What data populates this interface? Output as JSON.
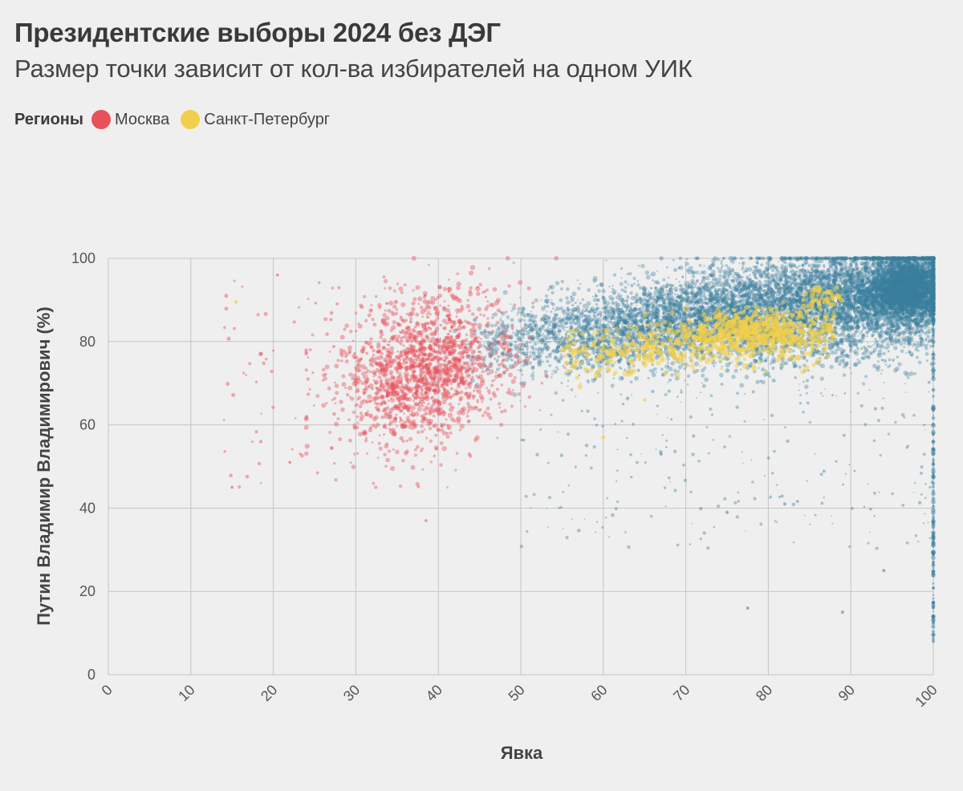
{
  "title": "Президентские выборы 2024 без ДЭГ",
  "subtitle": "Размер точки зависит от кол-ва избирателей на одном УИК",
  "legend": {
    "title": "Регионы",
    "items": [
      {
        "label": "Москва",
        "color": "#e8505b"
      },
      {
        "label": "Санкт-Петербург",
        "color": "#f2cf4a"
      }
    ]
  },
  "chart_data": {
    "type": "scatter",
    "xlabel": "Явка",
    "ylabel": "Путин Владимир Владимирович (%)",
    "xlim": [
      0,
      100
    ],
    "ylim": [
      0,
      100
    ],
    "xticks": [
      "0",
      "10",
      "20",
      "30",
      "40",
      "50",
      "60",
      "70",
      "80",
      "90",
      "100"
    ],
    "yticks": [
      "0",
      "20",
      "40",
      "60",
      "80",
      "100"
    ],
    "grid": true,
    "series": [
      {
        "name": "",
        "color": "#3a7f9e",
        "description_clusters": [
          {
            "x_center": 72,
            "y_center": 84,
            "x_spread": 15,
            "y_spread": 6
          },
          {
            "x_center": 95,
            "y_center": 92,
            "x_spread": 5,
            "y_spread": 5
          }
        ],
        "values": [
          {
            "x": 45,
            "y": 83
          },
          {
            "x": 50,
            "y": 80
          },
          {
            "x": 55,
            "y": 81
          },
          {
            "x": 60,
            "y": 82
          },
          {
            "x": 65,
            "y": 83
          },
          {
            "x": 70,
            "y": 85
          },
          {
            "x": 75,
            "y": 86
          },
          {
            "x": 80,
            "y": 87
          },
          {
            "x": 85,
            "y": 89
          },
          {
            "x": 90,
            "y": 91
          },
          {
            "x": 95,
            "y": 94
          },
          {
            "x": 100,
            "y": 98
          },
          {
            "x": 77.5,
            "y": 16
          },
          {
            "x": 100,
            "y": 8
          },
          {
            "x": 100,
            "y": 33
          },
          {
            "x": 94,
            "y": 25
          },
          {
            "x": 82,
            "y": 41
          },
          {
            "x": 89,
            "y": 15
          }
        ]
      },
      {
        "name": "Москва",
        "color": "#e8505b",
        "values": [
          {
            "x": 29,
            "y": 67
          },
          {
            "x": 32,
            "y": 73
          },
          {
            "x": 35,
            "y": 70
          },
          {
            "x": 38,
            "y": 68
          },
          {
            "x": 40,
            "y": 72
          },
          {
            "x": 42,
            "y": 77
          },
          {
            "x": 33,
            "y": 83
          },
          {
            "x": 37,
            "y": 86
          },
          {
            "x": 44,
            "y": 75
          },
          {
            "x": 30,
            "y": 58
          },
          {
            "x": 36,
            "y": 60
          },
          {
            "x": 15,
            "y": 45
          },
          {
            "x": 15.5,
            "y": 89.5
          },
          {
            "x": 38.5,
            "y": 37
          }
        ]
      },
      {
        "name": "Санкт-Петербург",
        "color": "#f2cf4a",
        "values": [
          {
            "x": 57,
            "y": 78
          },
          {
            "x": 62,
            "y": 79
          },
          {
            "x": 67,
            "y": 80
          },
          {
            "x": 72,
            "y": 82
          },
          {
            "x": 75,
            "y": 83
          },
          {
            "x": 78,
            "y": 84
          },
          {
            "x": 80,
            "y": 83
          },
          {
            "x": 83,
            "y": 85
          },
          {
            "x": 86,
            "y": 90
          },
          {
            "x": 70,
            "y": 78
          },
          {
            "x": 60,
            "y": 57
          },
          {
            "x": 65,
            "y": 66
          }
        ]
      }
    ]
  }
}
